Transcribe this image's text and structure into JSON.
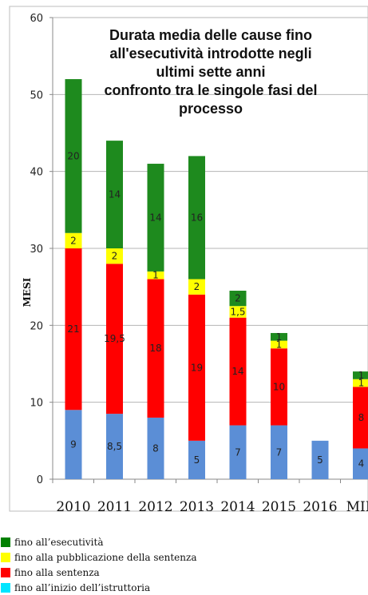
{
  "chart_data": {
    "type": "bar",
    "stacked": true,
    "title_lines": [
      "Durata media delle cause fino",
      "all'esecutività introdotte negli",
      "ultimi sette anni",
      "confronto tra le singole fasi del",
      "processo"
    ],
    "ylabel": "MESI",
    "xlabel": "",
    "ylim": [
      0,
      60
    ],
    "yticks": [
      0,
      10,
      20,
      30,
      40,
      50,
      60
    ],
    "grid": true,
    "legend_position": "bottom-left",
    "categories": [
      "2010",
      "2011",
      "2012",
      "2013",
      "2014",
      "2015",
      "2016",
      "MID"
    ],
    "series": [
      {
        "name": "fino all'inizio dell'istruttoria",
        "legend_color": "#00E5FF",
        "bar_color": "#5B8ED6",
        "values": [
          9,
          8.5,
          8,
          5,
          7,
          7,
          5,
          4
        ],
        "labels": [
          "9",
          "8,5",
          "8",
          "5",
          "7",
          "7",
          "5",
          "4"
        ]
      },
      {
        "name": "fino alla sentenza",
        "legend_color": "#FF0000",
        "bar_color": "#FF0000",
        "values": [
          21,
          19.5,
          18,
          19,
          14,
          10,
          0,
          8
        ],
        "labels": [
          "21",
          "19,5",
          "18",
          "19",
          "14",
          "10",
          "",
          "8"
        ]
      },
      {
        "name": "fino alla pubblicazione della sentenza",
        "legend_color": "#FFFF00",
        "bar_color": "#FFFF00",
        "values": [
          2,
          2,
          1,
          2,
          1.5,
          1,
          0,
          1
        ],
        "labels": [
          "2",
          "2",
          "1",
          "2",
          "1,5",
          "1",
          "",
          "1"
        ]
      },
      {
        "name": "fino all'esecutività",
        "legend_color": "#008000",
        "bar_color": "#1E8A1E",
        "values": [
          20,
          14,
          14,
          16,
          2,
          1,
          0,
          1
        ],
        "labels": [
          "20",
          "14",
          "14",
          "16",
          "2",
          "1",
          "",
          "1"
        ]
      }
    ],
    "legend_order": [
      3,
      2,
      1,
      0
    ],
    "legend_names": [
      "fino all’esecutività",
      "fino alla pubblicazione della sentenza",
      "fino alla sentenza",
      "fino all’inizio dell’istruttoria"
    ]
  }
}
